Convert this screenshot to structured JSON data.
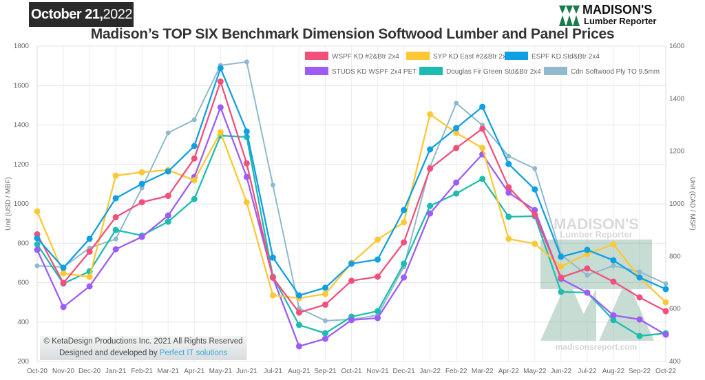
{
  "header": {
    "date_bold": "October 21,",
    "date_year": "2022",
    "logo_line1": "MADISON'S",
    "logo_line2": "Lumber Reporter"
  },
  "footer": {
    "copyright": "© KetaDesign Productions Inc. 2021 All Rights Reserved",
    "designed_by": "Designed and developed by",
    "developer_link": "Perfect IT solutions"
  },
  "watermark": {
    "line1": "MADISON'S",
    "line2": "Lumber Reporter",
    "url": "madisonsreport.com"
  },
  "chart_data": {
    "type": "line",
    "title": "Madison’s TOP SIX Benchmark Dimension Softwood Lumber and Panel Prices",
    "ylabel": "Unit (USD / MBF)",
    "y2label": "Unit (CAD / MSF)",
    "ylim": [
      200,
      1800
    ],
    "y2lim": [
      400,
      1600
    ],
    "yticks": [
      200,
      400,
      600,
      800,
      1000,
      1200,
      1400,
      1600,
      1800
    ],
    "y2ticks": [
      400,
      600,
      800,
      1000,
      1200,
      1400,
      1600
    ],
    "grid": true,
    "legend": "top-right",
    "categories": [
      "Oct-20",
      "Nov-20",
      "Dec-20",
      "Jan-21",
      "Feb-21",
      "Mar-21",
      "Apr-21",
      "May-21",
      "Jun-21",
      "Jul-21",
      "Aug-21",
      "Sep-21",
      "Oct-21",
      "Nov-21",
      "Dec-21",
      "Jan-22",
      "Feb-22",
      "Mar-22",
      "Apr-22",
      "May-22",
      "Jun-22",
      "Jul-22",
      "Aug-22",
      "Sep-22",
      "Oct-22"
    ],
    "series": [
      {
        "name": "WSPF KD #2&Btr 2x4",
        "color": "#f2507b",
        "axis": "left",
        "values": [
          845,
          598,
          757,
          932,
          1008,
          1040,
          1230,
          1620,
          1205,
          625,
          448,
          488,
          609,
          630,
          804,
          1178,
          1283,
          1381,
          1084,
          944,
          626,
          672,
          605,
          525,
          455
        ]
      },
      {
        "name": "SYP KD East #2&Btr 2x4",
        "color": "#fcc834",
        "axis": "left",
        "values": [
          961,
          647,
          629,
          1143,
          1160,
          1171,
          1119,
          1363,
          1007,
          535,
          521,
          542,
          700,
          818,
          906,
          1454,
          1360,
          1283,
          822,
          797,
          682,
          745,
          794,
          626,
          500
        ]
      },
      {
        "name": "ESPF KD Std&Btr 2x4",
        "color": "#0f9fe3",
        "axis": "left",
        "values": [
          825,
          675,
          822,
          1028,
          1101,
          1164,
          1293,
          1688,
          1367,
          727,
          535,
          574,
          696,
          717,
          968,
          1276,
          1384,
          1492,
          1202,
          1073,
          731,
          766,
          713,
          626,
          567
        ]
      },
      {
        "name": "STUDS KD WSPF 2x4 PET",
        "color": "#9c5cf5",
        "axis": "left",
        "values": [
          766,
          476,
          581,
          769,
          832,
          940,
          1136,
          1489,
          1136,
          625,
          277,
          315,
          410,
          420,
          626,
          951,
          1108,
          1251,
          1056,
          968,
          619,
          549,
          434,
          413,
          336
        ]
      },
      {
        "name": "Douglas Fir Green Std&Btr 2x4",
        "color": "#1cbdb0",
        "axis": "left",
        "values": [
          794,
          595,
          657,
          867,
          839,
          909,
          1024,
          1346,
          1339,
          630,
          385,
          343,
          427,
          455,
          696,
          989,
          1052,
          1126,
          934,
          937,
          553,
          549,
          410,
          329,
          343
        ]
      },
      {
        "name": "Cdn Softwood Ply TO 9.5mm",
        "color": "#8fb9cd",
        "axis": "right",
        "values": [
          764,
          759,
          832,
          866,
          1060,
          1270,
          1320,
          1527,
          1540,
          1071,
          602,
          555,
          560,
          576,
          760,
          1141,
          1383,
          1299,
          1181,
          1134,
          806,
          728,
          764,
          741,
          696
        ]
      }
    ]
  }
}
